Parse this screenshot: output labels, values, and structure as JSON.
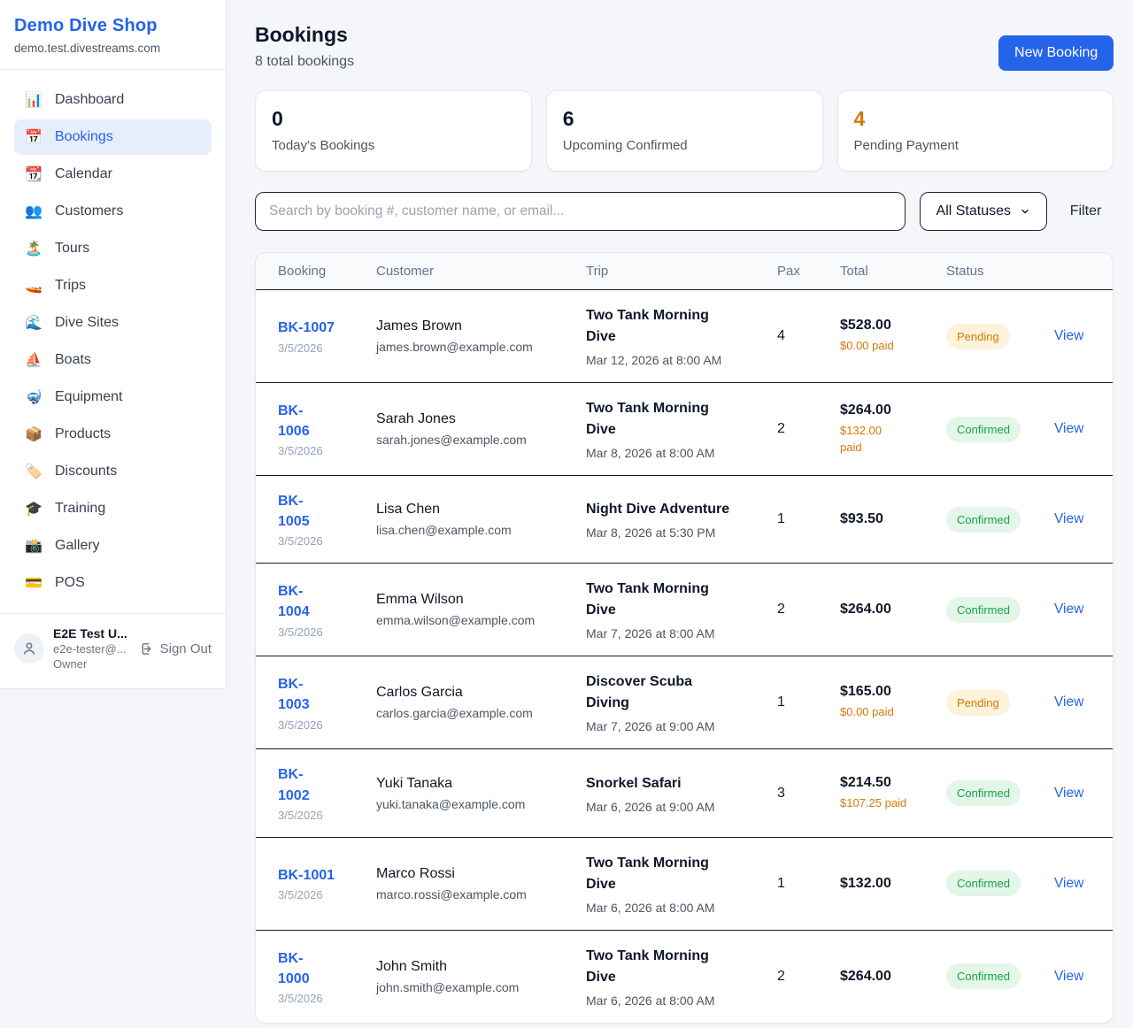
{
  "colors": {
    "brand_blue": "#2563eb",
    "pending_text": "#d97706",
    "pending_bg": "#fcf3da",
    "confirmed_text": "#17a34a",
    "confirmed_bg": "#e3f6e8",
    "page_bg": "#f4f6f9"
  },
  "sidebar": {
    "brand": {
      "name": "Demo Dive Shop",
      "domain": "demo.test.divestreams.com"
    },
    "items": [
      {
        "icon": "📊",
        "icon_name": "dashboard-chart-icon",
        "label": "Dashboard",
        "active": false
      },
      {
        "icon": "📅",
        "icon_name": "bookings-calendar-icon",
        "label": "Bookings",
        "active": true
      },
      {
        "icon": "📆",
        "icon_name": "calendar-icon",
        "label": "Calendar",
        "active": false
      },
      {
        "icon": "👥",
        "icon_name": "customers-people-icon",
        "label": "Customers",
        "active": false
      },
      {
        "icon": "🏝️",
        "icon_name": "tours-island-icon",
        "label": "Tours",
        "active": false
      },
      {
        "icon": "🚤",
        "icon_name": "trips-boat-icon",
        "label": "Trips",
        "active": false
      },
      {
        "icon": "🌊",
        "icon_name": "dive-sites-wave-icon",
        "label": "Dive Sites",
        "active": false
      },
      {
        "icon": "⛵",
        "icon_name": "boats-sailboat-icon",
        "label": "Boats",
        "active": false
      },
      {
        "icon": "🤿",
        "icon_name": "equipment-mask-icon",
        "label": "Equipment",
        "active": false
      },
      {
        "icon": "📦",
        "icon_name": "products-package-icon",
        "label": "Products",
        "active": false
      },
      {
        "icon": "🏷️",
        "icon_name": "discounts-tag-icon",
        "label": "Discounts",
        "active": false
      },
      {
        "icon": "🎓",
        "icon_name": "training-gradcap-icon",
        "label": "Training",
        "active": false
      },
      {
        "icon": "📸",
        "icon_name": "gallery-camera-icon",
        "label": "Gallery",
        "active": false
      },
      {
        "icon": "💳",
        "icon_name": "pos-card-icon",
        "label": "POS",
        "active": false
      }
    ],
    "user": {
      "name": "E2E Test U...",
      "email": "e2e-tester@...",
      "role": "Owner",
      "sign_out_label": "Sign Out"
    }
  },
  "header": {
    "title": "Bookings",
    "subtitle": "8 total bookings",
    "new_booking_label": "New Booking"
  },
  "stats": [
    {
      "value": "0",
      "label": "Today's Bookings",
      "value_color": "#0f172a"
    },
    {
      "value": "6",
      "label": "Upcoming Confirmed",
      "value_color": "#0f172a"
    },
    {
      "value": "4",
      "label": "Pending Payment",
      "value_color": "#d97706"
    }
  ],
  "filters": {
    "search_placeholder": "Search by booking #, customer name, or email...",
    "status_selected": "All Statuses",
    "filter_label": "Filter"
  },
  "table": {
    "columns": [
      "Booking",
      "Customer",
      "Trip",
      "Pax",
      "Total",
      "Status"
    ],
    "view_label": "View",
    "rows": [
      {
        "id": "BK-1007",
        "date": "3/5/2026",
        "customer": "James Brown",
        "email": "james.brown@example.com",
        "trip": "Two Tank Morning\nDive",
        "datetime": "Mar 12, 2026 at 8:00 AM",
        "pax": "4",
        "total": "$528.00",
        "paid": "$0.00 paid",
        "status": "Pending",
        "status_type": "pending"
      },
      {
        "id": "BK-\n1006",
        "date": "3/5/2026",
        "customer": "Sarah Jones",
        "email": "sarah.jones@example.com",
        "trip": "Two Tank Morning\nDive",
        "datetime": "Mar 8, 2026 at 8:00 AM",
        "pax": "2",
        "total": "$264.00",
        "paid": "$132.00\npaid",
        "status": "Confirmed",
        "status_type": "confirmed"
      },
      {
        "id": "BK-\n1005",
        "date": "3/5/2026",
        "customer": "Lisa Chen",
        "email": "lisa.chen@example.com",
        "trip": "Night Dive Adventure",
        "datetime": "Mar 8, 2026 at 5:30 PM",
        "pax": "1",
        "total": "$93.50",
        "paid": "",
        "status": "Confirmed",
        "status_type": "confirmed"
      },
      {
        "id": "BK-\n1004",
        "date": "3/5/2026",
        "customer": "Emma Wilson",
        "email": "emma.wilson@example.com",
        "trip": "Two Tank Morning\nDive",
        "datetime": "Mar 7, 2026 at 8:00 AM",
        "pax": "2",
        "total": "$264.00",
        "paid": "",
        "status": "Confirmed",
        "status_type": "confirmed"
      },
      {
        "id": "BK-\n1003",
        "date": "3/5/2026",
        "customer": "Carlos Garcia",
        "email": "carlos.garcia@example.com",
        "trip": "Discover Scuba\nDiving",
        "datetime": "Mar 7, 2026 at 9:00 AM",
        "pax": "1",
        "total": "$165.00",
        "paid": "$0.00 paid",
        "status": "Pending",
        "status_type": "pending"
      },
      {
        "id": "BK-\n1002",
        "date": "3/5/2026",
        "customer": "Yuki Tanaka",
        "email": "yuki.tanaka@example.com",
        "trip": "Snorkel Safari",
        "datetime": "Mar 6, 2026 at 9:00 AM",
        "pax": "3",
        "total": "$214.50",
        "paid": "$107.25 paid",
        "status": "Confirmed",
        "status_type": "confirmed"
      },
      {
        "id": "BK-1001",
        "date": "3/5/2026",
        "customer": "Marco Rossi",
        "email": "marco.rossi@example.com",
        "trip": "Two Tank Morning\nDive",
        "datetime": "Mar 6, 2026 at 8:00 AM",
        "pax": "1",
        "total": "$132.00",
        "paid": "",
        "status": "Confirmed",
        "status_type": "confirmed"
      },
      {
        "id": "BK-\n1000",
        "date": "3/5/2026",
        "customer": "John Smith",
        "email": "john.smith@example.com",
        "trip": "Two Tank Morning\nDive",
        "datetime": "Mar 6, 2026 at 8:00 AM",
        "pax": "2",
        "total": "$264.00",
        "paid": "",
        "status": "Confirmed",
        "status_type": "confirmed"
      }
    ]
  }
}
